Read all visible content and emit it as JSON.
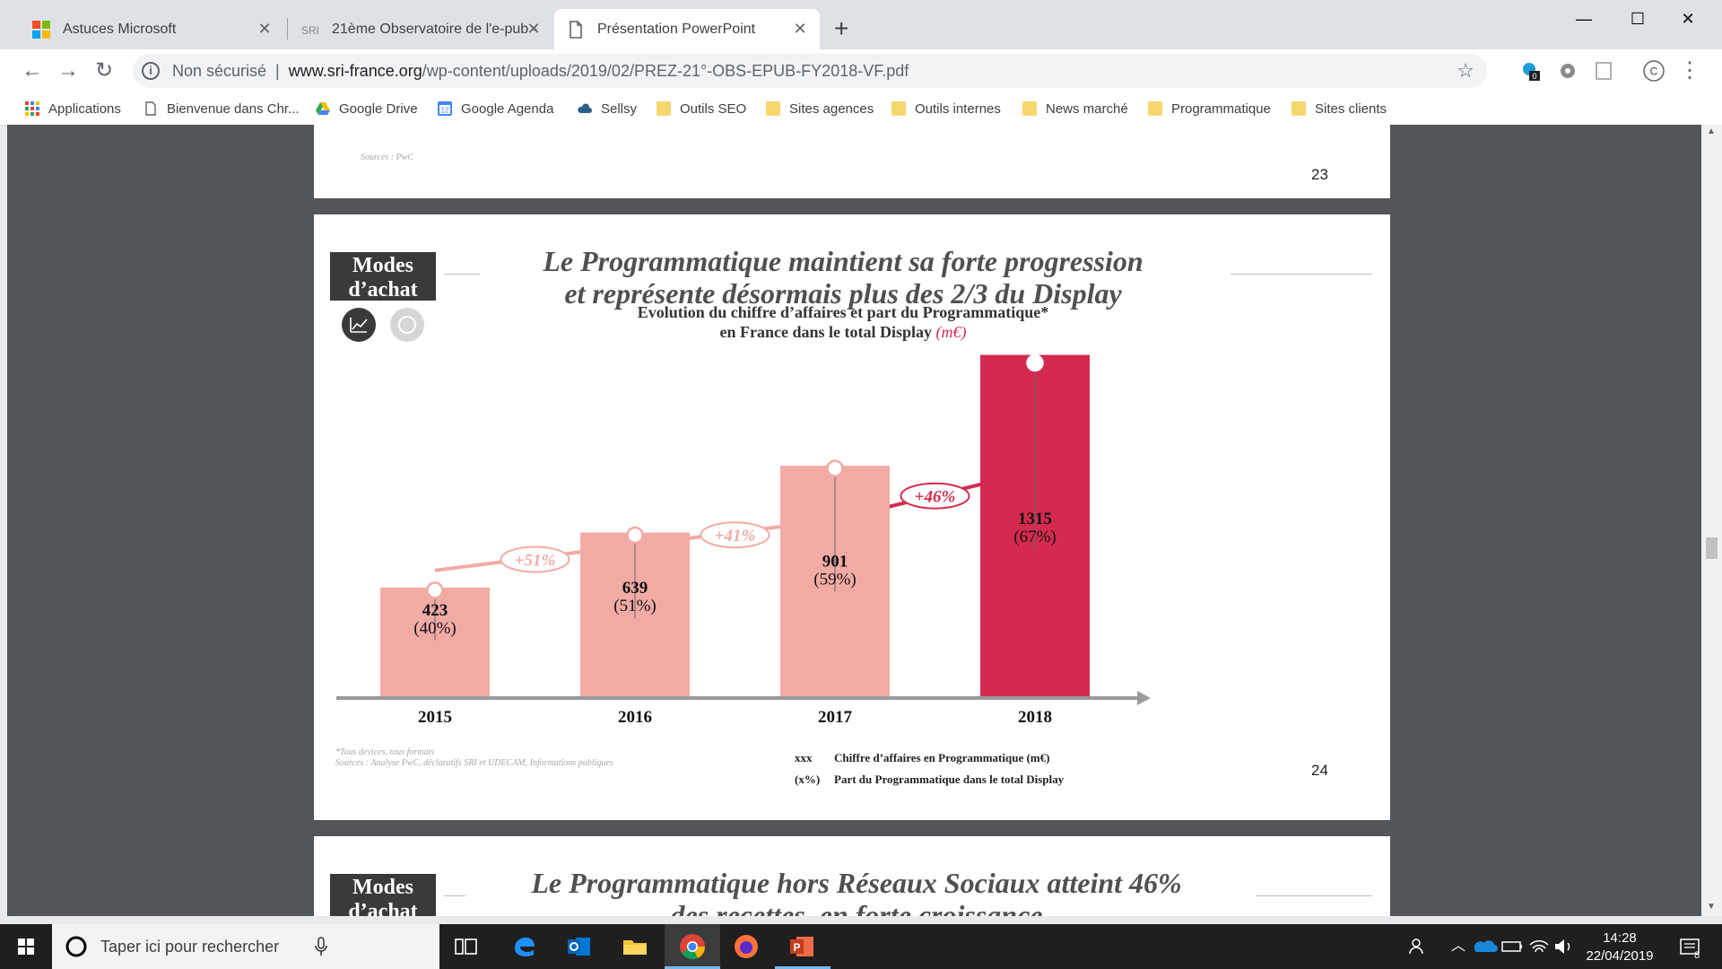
{
  "browser": {
    "tabs": [
      {
        "title": "Astuces Microsoft",
        "active": false
      },
      {
        "title": "21ème Observatoire de l'e-pub -",
        "active": false
      },
      {
        "title": "Présentation PowerPoint",
        "active": true
      }
    ],
    "security_label": "Non sécurisé",
    "url_host": "www.sri-france.org",
    "url_path": "/wp-content/uploads/2019/02/PREZ-21°-OBS-EPUB-FY2018-VF.pdf",
    "extension_badge": "0",
    "profile_initial": "C",
    "bookmarks": [
      {
        "label": "Applications",
        "icon": "apps-grid-icon"
      },
      {
        "label": "Bienvenue dans Chr...",
        "icon": "page-icon"
      },
      {
        "label": "Google Drive",
        "icon": "drive-icon"
      },
      {
        "label": "Google Agenda",
        "icon": "calendar-icon",
        "icon_text": "12"
      },
      {
        "label": "Sellsy",
        "icon": "cloud-icon"
      },
      {
        "label": "Outils SEO",
        "icon": "folder-icon"
      },
      {
        "label": "Sites agences",
        "icon": "folder-icon"
      },
      {
        "label": "Outils internes",
        "icon": "folder-icon"
      },
      {
        "label": "News marché",
        "icon": "folder-icon"
      },
      {
        "label": "Programmatique",
        "icon": "folder-icon"
      },
      {
        "label": "Sites clients",
        "icon": "folder-icon"
      }
    ]
  },
  "pdf": {
    "page23": {
      "sources": "Sources : PwC",
      "number": "23"
    },
    "page24": {
      "badge_line1": "Modes",
      "badge_line2": "d’achat",
      "title_line1": "Le Programmatique maintient sa forte progression",
      "title_line2": "et représente désormais plus des 2/3 du Display",
      "subtitle_line1": "Evolution du chiffre d’affaires et part du Programmatique*",
      "subtitle_line2": "en France dans le total Display",
      "subtitle_unit": "(m€)",
      "footnote_line1": "*Tous devices, tous formats",
      "footnote_line2": "Sources : Analyse PwC, déclaratifs SRI et UDECAM, Informations publiques",
      "legend": [
        {
          "key": "xxx",
          "text": "Chiffre d’affaires en Programmatique (m€)"
        },
        {
          "key": "(x%)",
          "text": "Part du Programmatique dans le total Display"
        }
      ],
      "number": "24"
    },
    "page25": {
      "badge_line1": "Modes",
      "badge_line2": "d’achat",
      "title_line1": "Le Programmatique hors Réseaux Sociaux atteint 46%",
      "title_line2": "des recettes, en forte croissance"
    }
  },
  "chart_data": {
    "type": "bar",
    "title": "Evolution du chiffre d’affaires et part du Programmatique* en France dans le total Display (m€)",
    "categories": [
      "2015",
      "2016",
      "2017",
      "2018"
    ],
    "values": [
      423,
      639,
      901,
      1315
    ],
    "labels": [
      "423",
      "639",
      "901",
      "1315"
    ],
    "shares": [
      "(40%)",
      "(51%)",
      "(59%)",
      "(67%)"
    ],
    "growth": [
      "+51%",
      "+41%",
      "+46%"
    ],
    "ylim": [
      0,
      1400
    ],
    "colors": {
      "bar": "#f2aaa4",
      "highlight": "#d42a4f",
      "axis": "#9a9a9a"
    }
  },
  "taskbar": {
    "search_placeholder": "Taper ici pour rechercher",
    "time": "14:28",
    "date": "22/04/2019",
    "notifications": "8"
  }
}
